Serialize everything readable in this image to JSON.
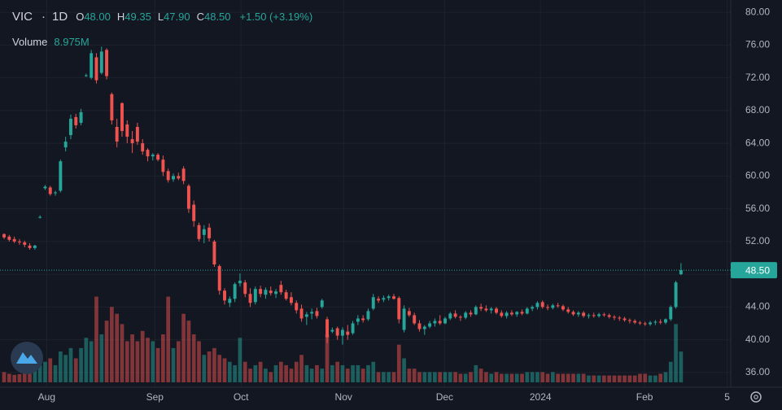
{
  "chart_data": {
    "type": "candlestick",
    "header": {
      "symbol": "VIC",
      "interval": "1D",
      "ohlc": [
        {
          "label": "O",
          "value": "48.00"
        },
        {
          "label": "H",
          "value": "49.35"
        },
        {
          "label": "L",
          "value": "47.90"
        },
        {
          "label": "C",
          "value": "48.50"
        }
      ],
      "change": "+1.50 (+3.19%)"
    },
    "volume_legend": {
      "label": "Volume",
      "value": "8.975M"
    },
    "up_color": "#26a69a",
    "down_color": "#ef5350",
    "xlim": [
      -0.8,
      141.7
    ],
    "xticks": [
      {
        "value": 8.3,
        "label": "Aug"
      },
      {
        "value": 29.4,
        "label": "Sep"
      },
      {
        "value": 46.2,
        "label": "Oct"
      },
      {
        "value": 66.2,
        "label": "Nov"
      },
      {
        "value": 85.9,
        "label": "Dec"
      },
      {
        "value": 104.6,
        "label": "2024"
      },
      {
        "value": 124.9,
        "label": "Feb"
      },
      {
        "value": 141,
        "label": "5"
      }
    ],
    "ylim": [
      34.2,
      81.5
    ],
    "yticks": [
      {
        "value": 36,
        "label": "36.00"
      },
      {
        "value": 40,
        "label": "40.00"
      },
      {
        "value": 44,
        "label": "44.00"
      },
      {
        "value": 48,
        "label": "48.00"
      },
      {
        "value": 52,
        "label": "52.00"
      },
      {
        "value": 56,
        "label": "56.00"
      },
      {
        "value": 60,
        "label": "60.00"
      },
      {
        "value": 64,
        "label": "64.00"
      },
      {
        "value": 68,
        "label": "68.00"
      },
      {
        "value": 72,
        "label": "72.00"
      },
      {
        "value": 76,
        "label": "76.00"
      },
      {
        "value": 80,
        "label": "80.00"
      }
    ],
    "vlim": [
      0,
      28
    ],
    "grid": true,
    "last_price": {
      "value": 48.5,
      "label": "48.50"
    },
    "open": [
      52.9,
      52.6,
      52.3,
      52.0,
      51.9,
      51.5,
      51.2,
      55.0,
      58.5,
      58.6,
      57.9,
      58.2,
      63.5,
      65.0,
      67.2,
      66.5,
      72.3,
      72.0,
      74.5,
      72.6,
      75.4,
      70.0,
      66.0,
      68.9,
      66.3,
      64.5,
      66.0,
      64.0,
      63.2,
      62.4,
      62.6,
      62.0,
      60.6,
      59.6,
      60.0,
      60.9,
      58.8,
      56.5,
      54.0,
      52.8,
      53.7,
      52.0,
      49.0,
      46.0,
      44.5,
      45.0,
      46.9,
      47.0,
      45.6,
      44.6,
      46.2,
      45.5,
      46.0,
      45.6,
      46.7,
      45.8,
      45.2,
      44.5,
      43.8,
      42.8,
      43.2,
      43.5,
      44.0,
      42.5,
      41.0,
      41.4,
      40.5,
      41.0,
      40.8,
      42.2,
      42.6,
      42.5,
      43.8,
      45.0,
      44.9,
      45.1,
      45.3,
      45.1,
      41.2,
      43.5,
      43.0,
      42.0,
      41.3,
      41.6,
      42.0,
      42.3,
      42.0,
      42.6,
      43.2,
      42.8,
      42.7,
      43.3,
      43.1,
      44.0,
      43.8,
      43.6,
      43.8,
      43.3,
      42.9,
      43.3,
      43.1,
      43.4,
      43.2,
      43.8,
      44.0,
      44.6,
      44.0,
      43.9,
      44.2,
      44.1,
      43.7,
      43.4,
      43.1,
      43.3,
      42.9,
      43.0,
      42.9,
      43.1,
      43.0,
      42.8,
      42.7,
      42.6,
      42.4,
      42.3,
      42.1,
      42.0,
      41.9,
      42.1,
      42.2,
      42.1,
      42.5,
      44.0,
      48.0
    ],
    "high": [
      53.0,
      52.8,
      52.6,
      52.3,
      52.1,
      51.8,
      51.6,
      55.2,
      58.9,
      58.8,
      58.2,
      62.0,
      64.8,
      67.5,
      67.6,
      68.2,
      72.5,
      75.4,
      75.0,
      75.8,
      75.6,
      70.2,
      67.0,
      69.0,
      66.8,
      65.5,
      66.5,
      64.5,
      63.4,
      62.8,
      62.8,
      62.5,
      60.9,
      60.3,
      60.4,
      61.2,
      59.0,
      57.0,
      54.3,
      54.0,
      54.2,
      52.2,
      49.2,
      46.3,
      45.3,
      47.0,
      48.1,
      47.3,
      46.3,
      46.5,
      46.6,
      46.4,
      46.5,
      46.2,
      47.2,
      46.1,
      45.8,
      44.8,
      44.3,
      43.4,
      43.8,
      43.9,
      45.0,
      42.8,
      41.5,
      41.6,
      41.5,
      41.8,
      42.3,
      43.0,
      43.0,
      43.8,
      45.6,
      45.3,
      45.4,
      45.5,
      45.6,
      45.3,
      44.2,
      43.9,
      43.3,
      42.4,
      41.8,
      42.3,
      42.6,
      43.0,
      42.8,
      43.4,
      43.6,
      43.0,
      43.5,
      43.6,
      44.2,
      44.4,
      44.2,
      44.0,
      44.0,
      43.6,
      43.5,
      43.6,
      43.5,
      43.7,
      44.0,
      44.2,
      44.7,
      44.8,
      44.3,
      44.4,
      44.5,
      44.3,
      44.0,
      43.6,
      43.5,
      43.5,
      43.2,
      43.3,
      43.3,
      43.3,
      43.2,
      43.0,
      42.9,
      42.8,
      42.6,
      42.5,
      42.3,
      42.2,
      42.3,
      42.4,
      42.5,
      42.6,
      44.2,
      47.2,
      49.35
    ],
    "low": [
      52.3,
      52.0,
      51.8,
      51.6,
      51.3,
      51.0,
      51.0,
      54.8,
      58.3,
      57.6,
      57.6,
      58.0,
      63.0,
      64.5,
      65.8,
      66.2,
      72.1,
      71.8,
      71.3,
      72.4,
      71.8,
      66.3,
      63.5,
      64.8,
      64.0,
      62.8,
      63.8,
      62.6,
      61.8,
      61.9,
      61.8,
      60.0,
      59.2,
      59.3,
      59.5,
      59.0,
      55.5,
      53.8,
      52.0,
      51.8,
      52.0,
      48.9,
      45.5,
      44.3,
      44.0,
      44.6,
      46.5,
      45.2,
      44.0,
      44.3,
      45.2,
      45.0,
      45.4,
      45.1,
      45.5,
      44.8,
      44.2,
      43.2,
      42.2,
      41.8,
      42.5,
      42.6,
      43.8,
      39.6,
      40.8,
      40.0,
      39.4,
      40.0,
      40.6,
      41.8,
      42.1,
      42.3,
      43.6,
      44.5,
      44.6,
      44.8,
      44.9,
      42.0,
      40.9,
      42.8,
      41.8,
      41.0,
      40.6,
      41.4,
      41.6,
      41.8,
      41.9,
      42.4,
      42.6,
      42.3,
      42.5,
      42.8,
      43.0,
      43.5,
      43.4,
      43.2,
      43.1,
      42.7,
      42.6,
      42.9,
      42.8,
      43.0,
      43.1,
      43.5,
      43.7,
      43.8,
      43.6,
      43.7,
      43.9,
      43.5,
      43.2,
      42.9,
      42.8,
      42.7,
      42.6,
      42.7,
      42.7,
      42.8,
      42.6,
      42.4,
      42.3,
      42.2,
      42.0,
      41.9,
      41.8,
      41.7,
      41.7,
      41.8,
      41.9,
      41.9,
      42.3,
      43.8,
      47.9
    ],
    "close": [
      52.5,
      52.2,
      52.0,
      51.9,
      51.6,
      51.2,
      51.5,
      55.0,
      58.7,
      57.8,
      58.0,
      61.8,
      64.2,
      67.0,
      66.2,
      67.8,
      72.3,
      75.0,
      71.7,
      75.2,
      72.2,
      66.8,
      64.2,
      65.5,
      64.8,
      64.0,
      64.2,
      63.0,
      62.4,
      62.6,
      62.0,
      60.5,
      59.5,
      60.0,
      59.7,
      59.4,
      56.0,
      54.5,
      52.3,
      53.5,
      52.4,
      49.2,
      46.0,
      44.8,
      45.0,
      46.8,
      47.2,
      45.6,
      44.5,
      46.2,
      45.6,
      46.1,
      45.7,
      45.9,
      45.8,
      45.0,
      44.5,
      43.6,
      42.6,
      43.1,
      43.4,
      42.9,
      44.8,
      40.3,
      41.2,
      40.5,
      41.2,
      40.6,
      42.0,
      42.6,
      42.4,
      43.5,
      45.2,
      44.8,
      45.1,
      45.3,
      45.0,
      42.5,
      43.8,
      43.0,
      42.0,
      41.3,
      41.6,
      42.0,
      42.3,
      42.0,
      42.6,
      43.2,
      42.8,
      42.7,
      43.3,
      43.1,
      44.0,
      43.8,
      43.6,
      43.8,
      43.3,
      42.9,
      43.3,
      43.1,
      43.4,
      43.2,
      43.8,
      44.0,
      44.5,
      44.0,
      43.9,
      44.2,
      44.1,
      43.7,
      43.4,
      43.1,
      43.3,
      42.9,
      43.0,
      42.9,
      43.1,
      43.0,
      42.8,
      42.7,
      42.6,
      42.4,
      42.3,
      42.1,
      42.0,
      41.9,
      42.1,
      42.2,
      42.1,
      42.5,
      44.0,
      47.0,
      48.5
    ],
    "volume": [
      3,
      2.5,
      2.2,
      2.4,
      3,
      3.5,
      4,
      5,
      6,
      7,
      5,
      9,
      8,
      10,
      7,
      10,
      13,
      12,
      25,
      14,
      18,
      22,
      20,
      17,
      12,
      14,
      12,
      15,
      13,
      12,
      10,
      14,
      25,
      10,
      12,
      20,
      18,
      14,
      12,
      8,
      9,
      10,
      8,
      7,
      6,
      5,
      13,
      6,
      4,
      5,
      6,
      4,
      3,
      5,
      6,
      5,
      4,
      6,
      8,
      5,
      4,
      5,
      4,
      14,
      5,
      6,
      5,
      4,
      5,
      5,
      4,
      5,
      6,
      3,
      3,
      3,
      3,
      11,
      7,
      4,
      4,
      3,
      3,
      3,
      3,
      3,
      3,
      3,
      3,
      2.5,
      2.5,
      3,
      5,
      4,
      3,
      2.5,
      3,
      2.5,
      2.5,
      2.5,
      2.5,
      2.5,
      3,
      3,
      3,
      3,
      2.5,
      3,
      2.5,
      2.5,
      2.5,
      2.5,
      2.5,
      2.5,
      2,
      2,
      2,
      2,
      2,
      2,
      2,
      2,
      2,
      2,
      2.5,
      2.5,
      2,
      2,
      2.5,
      3,
      6,
      17,
      8.975
    ]
  }
}
